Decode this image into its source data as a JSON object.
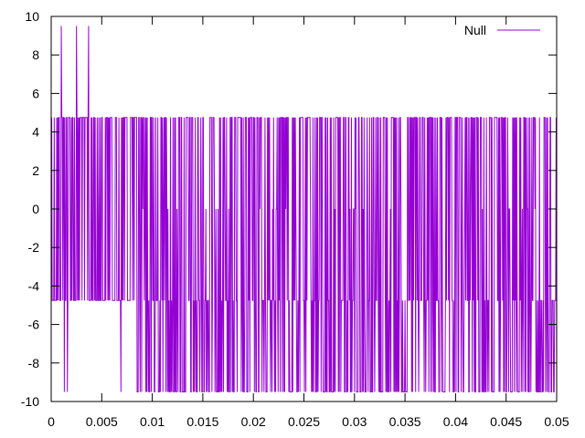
{
  "chart_data": {
    "type": "line",
    "title": "",
    "xlabel": "",
    "ylabel": "",
    "xlim": [
      0,
      0.05
    ],
    "ylim": [
      -10,
      10
    ],
    "x_ticks": [
      "0",
      "0.005",
      "0.01",
      "0.015",
      "0.02",
      "0.025",
      "0.03",
      "0.035",
      "0.04",
      "0.045",
      "0.05"
    ],
    "y_ticks": [
      "10",
      "8",
      "6",
      "4",
      "2",
      "0",
      "-2",
      "-4",
      "-6",
      "-8",
      "-10"
    ],
    "legend_position": "top-right",
    "grid": false,
    "sample_count": 1000,
    "levels": [
      9.5,
      4.75,
      0,
      -4.75,
      -9.5
    ],
    "series": [
      {
        "name": "Null",
        "color": "#9400d3",
        "description_values": {
          "upper_spikes_x": [
            0.001,
            0.0025,
            0.0037
          ],
          "early_lower_spikes_x": [
            0.0013,
            0.0016
          ],
          "isolated_lower_spike_x": 0.0069,
          "dense_full_range_start_x": 0.0085
        }
      }
    ]
  }
}
